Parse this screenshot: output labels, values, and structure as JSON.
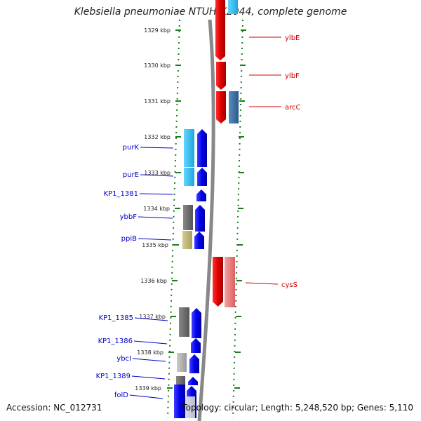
{
  "header": {
    "title": "Klebsiella pneumoniae NTUH-K2044, complete genome"
  },
  "footer": {
    "accession": "Accession: NC_012731",
    "topology": "Topology: circular; Length: 5,248,520 bp; Genes: 5,110"
  },
  "ruler": {
    "ticks": [
      {
        "label": "1329 kbp"
      },
      {
        "label": "1330 kbp"
      },
      {
        "label": "1331 kbp"
      },
      {
        "label": "1332 kbp"
      },
      {
        "label": "1333 kbp"
      },
      {
        "label": "1334 kbp"
      },
      {
        "label": "1335 kbp"
      },
      {
        "label": "1336 kbp"
      },
      {
        "label": "1337 kbp"
      },
      {
        "label": "1338 kbp"
      },
      {
        "label": "1339 kbp"
      }
    ]
  },
  "genes_left": [
    {
      "label": "purK",
      "color": "#0000cc"
    },
    {
      "label": "purE",
      "color": "#0000cc"
    },
    {
      "label": "KP1_1381",
      "color": "#0000cc"
    },
    {
      "label": "ybbF",
      "color": "#0000cc"
    },
    {
      "label": "ppiB",
      "color": "#0000cc"
    },
    {
      "label": "KP1_1385",
      "color": "#0000cc"
    },
    {
      "label": "KP1_1386",
      "color": "#0000cc"
    },
    {
      "label": "ybcI",
      "color": "#0000cc"
    },
    {
      "label": "KP1_1389",
      "color": "#0000cc"
    },
    {
      "label": "folD",
      "color": "#0000cc"
    }
  ],
  "genes_right": [
    {
      "label": "ylbE",
      "color": "#cc0000"
    },
    {
      "label": "ylbF",
      "color": "#cc0000"
    },
    {
      "label": "arcC",
      "color": "#cc0000"
    },
    {
      "label": "cysS",
      "color": "#cc0000"
    }
  ],
  "colors": {
    "forward_strand": "#e00000",
    "reverse_strand": "#0000ee",
    "dotted_track": "#1b7d1b",
    "backbone": "#888888",
    "cog_cyan": "#22bbee",
    "cog_gray": "#666666",
    "cog_olive": "#bbb070",
    "cog_steel": "#3d6fa3",
    "cog_pink": "#ee7f7f"
  }
}
